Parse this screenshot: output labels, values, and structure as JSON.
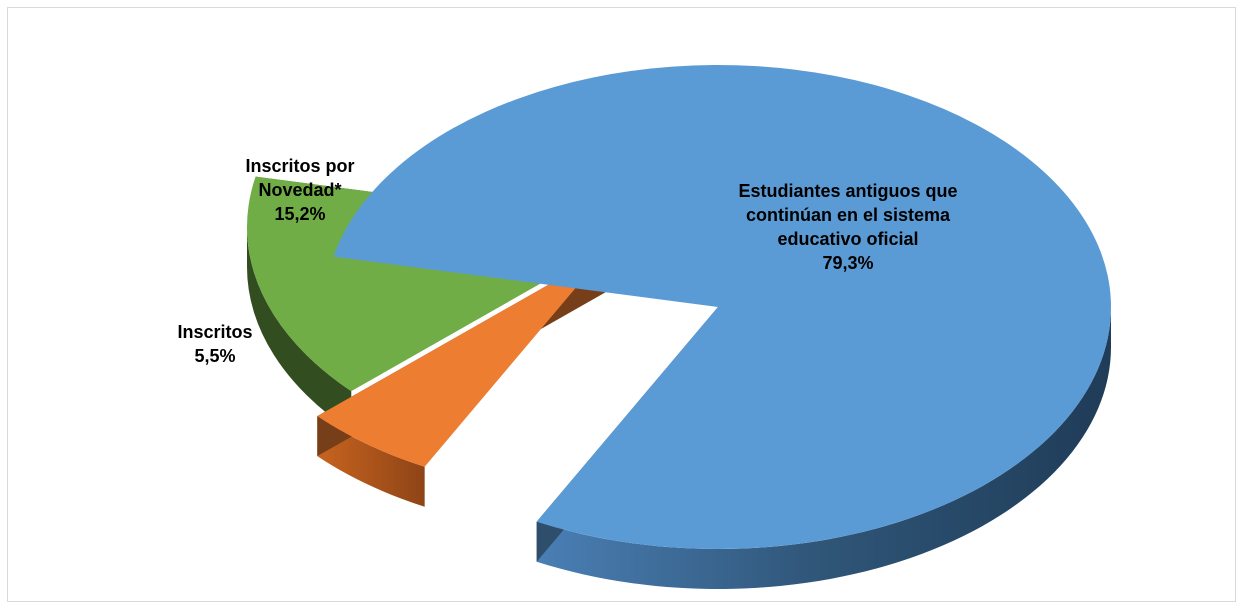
{
  "chart_data": {
    "type": "pie",
    "style": "3d-exploded",
    "slices": [
      {
        "label": "Estudiantes antiguos que continúan en el sistema educativo oficial",
        "value": 79.3,
        "value_label": "79,3%",
        "color": "#5b9bd5"
      },
      {
        "label": "Inscritos",
        "value": 5.5,
        "value_label": "5,5%",
        "color": "#ed7d31"
      },
      {
        "label": "Inscritos por Novedad*",
        "value": 15.2,
        "value_label": "15,2%",
        "color": "#70ad47"
      }
    ],
    "labels": {
      "blue": {
        "lines": [
          "Estudiantes antiguos que",
          "continúan en el sistema",
          "educativo oficial"
        ],
        "pct": "79,3%"
      },
      "orange": {
        "lines": [
          "Inscritos"
        ],
        "pct": "5,5%"
      },
      "green": {
        "lines": [
          "Inscritos por",
          "Novedad*"
        ],
        "pct": "15,2%"
      }
    }
  }
}
